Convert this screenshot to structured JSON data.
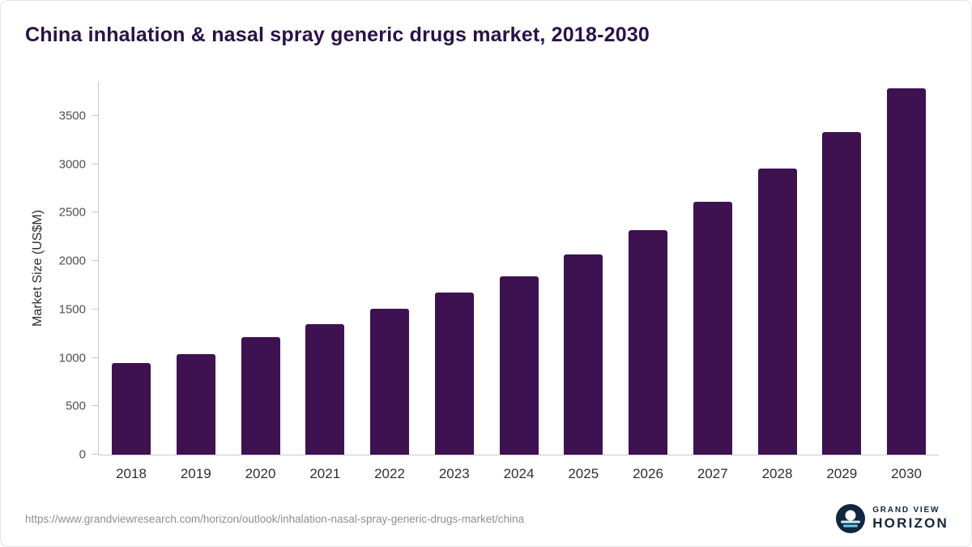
{
  "title": "China inhalation & nasal spray generic drugs market, 2018-2030",
  "source_url": "https://www.grandviewresearch.com/horizon/outlook/inhalation-nasal-spray-generic-drugs-market/china",
  "logo": {
    "line1": "GRAND VIEW",
    "line2": "HORIZON"
  },
  "colors": {
    "bar": "#3e1151",
    "title": "#2a1147",
    "axis": "#c9c9cd",
    "logo_navy": "#13263f",
    "logo_blue": "#6fc7e8"
  },
  "chart_data": {
    "type": "bar",
    "title": "China inhalation & nasal spray generic drugs market, 2018-2030",
    "categories": [
      "2018",
      "2019",
      "2020",
      "2021",
      "2022",
      "2023",
      "2024",
      "2025",
      "2026",
      "2027",
      "2028",
      "2029",
      "2030"
    ],
    "values": [
      950,
      1040,
      1210,
      1350,
      1505,
      1670,
      1845,
      2065,
      2320,
      2615,
      2955,
      3335,
      3780
    ],
    "xlabel": "",
    "ylabel": "Market Size (US$M)",
    "ylim": [
      0,
      3850
    ],
    "yticks": [
      0,
      500,
      1000,
      1500,
      2000,
      2500,
      3000,
      3500
    ],
    "grid": false,
    "legend": "none"
  }
}
